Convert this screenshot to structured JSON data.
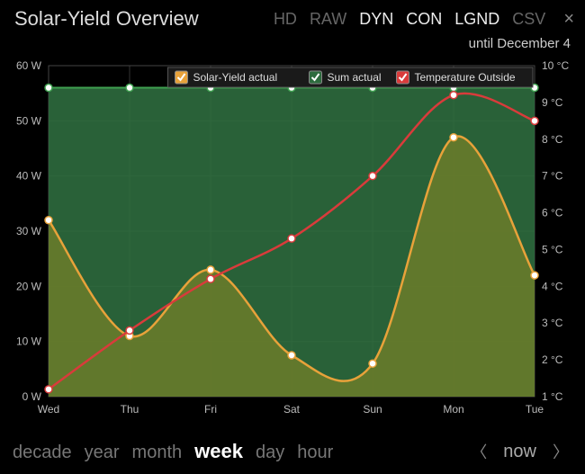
{
  "title": "Solar-Yield Overview",
  "modes": [
    {
      "id": "hd",
      "label": "HD",
      "active": false
    },
    {
      "id": "raw",
      "label": "RAW",
      "active": false
    },
    {
      "id": "dyn",
      "label": "DYN",
      "active": true
    },
    {
      "id": "con",
      "label": "CON",
      "active": true
    },
    {
      "id": "lgnd",
      "label": "LGND",
      "active": true
    },
    {
      "id": "csv",
      "label": "CSV",
      "active": false
    }
  ],
  "subtitle": "until December 4",
  "ranges": [
    {
      "id": "decade",
      "label": "decade",
      "active": false
    },
    {
      "id": "year",
      "label": "year",
      "active": false
    },
    {
      "id": "month",
      "label": "month",
      "active": false
    },
    {
      "id": "week",
      "label": "week",
      "active": true
    },
    {
      "id": "day",
      "label": "day",
      "active": false
    },
    {
      "id": "hour",
      "label": "hour",
      "active": false
    }
  ],
  "now_label": "now",
  "chart": {
    "type": "line+area",
    "background": "#000000",
    "plot_bg": "#000000",
    "grid_color": "#333333",
    "axis_text_color": "#bbbbbb",
    "axis_fontsize": 12,
    "x_labels": [
      "Wed",
      "Thu",
      "Fri",
      "Sat",
      "Sun",
      "Mon",
      "Tue"
    ],
    "left_axis": {
      "min": 0,
      "max": 60,
      "step": 10,
      "unit": "W",
      "ticks": [
        0,
        10,
        20,
        30,
        40,
        50,
        60
      ]
    },
    "right_axis": {
      "min": 1,
      "max": 10,
      "step": 1,
      "unit": "°C",
      "ticks": [
        1,
        2,
        3,
        4,
        5,
        6,
        7,
        8,
        9,
        10
      ]
    },
    "legend": {
      "bg": "#1a1a1a",
      "border": "#555555",
      "text_color": "#dddddd",
      "fontsize": 12,
      "items": [
        {
          "label": "Solar-Yield actual",
          "swatch": "#e8a23a",
          "check": true
        },
        {
          "label": "Sum actual",
          "swatch": "#2d6b3e",
          "check": true
        },
        {
          "label": "Temperature Outside",
          "swatch": "#d93b3b",
          "check": true
        }
      ]
    },
    "series": {
      "sum_actual": {
        "type": "area",
        "fill": "#2d6b3e",
        "fill_opacity": 0.9,
        "stroke": "#3fa050",
        "stroke_width": 2,
        "marker_fill": "#ffffff",
        "marker_stroke": "#3fa050",
        "marker_r": 4,
        "y": [
          56,
          56,
          56,
          56,
          56,
          56,
          56
        ]
      },
      "solar_yield": {
        "type": "area",
        "fill": "#6b7d2a",
        "fill_opacity": 0.85,
        "stroke": "#e8a23a",
        "stroke_width": 2.5,
        "marker_fill": "#ffffff",
        "marker_stroke": "#e8a23a",
        "marker_r": 4,
        "y": [
          32,
          11,
          23,
          7.5,
          6,
          47,
          22
        ]
      },
      "temperature": {
        "type": "line",
        "stroke": "#d93b3b",
        "stroke_width": 2.5,
        "marker_fill": "#ffffff",
        "marker_stroke": "#d93b3b",
        "marker_r": 4,
        "y": [
          1.2,
          2.8,
          4.2,
          5.3,
          7.0,
          9.2,
          8.5
        ]
      }
    }
  }
}
